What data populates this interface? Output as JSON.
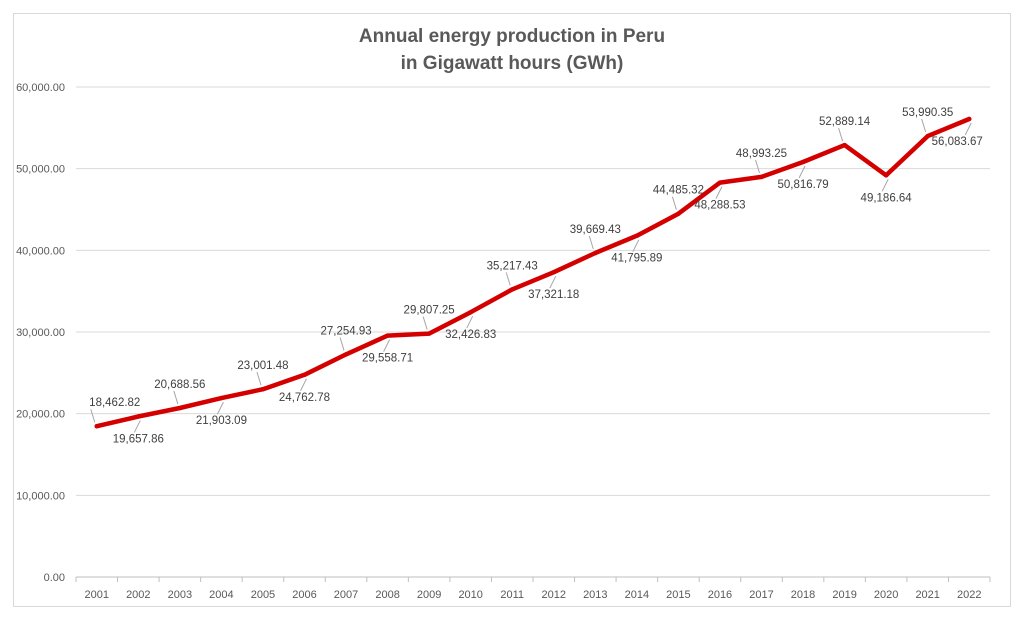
{
  "chart_data": {
    "type": "line",
    "title_line1": "Annual energy production in Peru",
    "title_line2": "in Gigawatt hours (GWh)",
    "xlabel": "",
    "ylabel": "",
    "ylim": [
      0,
      60000
    ],
    "y_ticks": [
      "0.00",
      "10,000.00",
      "20,000.00",
      "30,000.00",
      "40,000.00",
      "50,000.00",
      "60,000.00"
    ],
    "grid": true,
    "legend": "none",
    "line_color": "#d40000",
    "categories": [
      "2001",
      "2002",
      "2003",
      "2004",
      "2005",
      "2006",
      "2007",
      "2008",
      "2009",
      "2010",
      "2011",
      "2012",
      "2013",
      "2014",
      "2015",
      "2016",
      "2017",
      "2018",
      "2019",
      "2020",
      "2021",
      "2022"
    ],
    "series": [
      {
        "values": [
          18462.82,
          19657.86,
          20688.56,
          21903.09,
          23001.48,
          24762.78,
          27254.93,
          29558.71,
          29807.25,
          32426.83,
          35217.43,
          37321.18,
          39669.43,
          41795.89,
          44485.32,
          48288.53,
          48993.25,
          50816.79,
          52889.14,
          49186.64,
          53990.35,
          56083.67
        ],
        "labels": [
          "18,462.82",
          "19,657.86",
          "20,688.56",
          "21,903.09",
          "23,001.48",
          "24,762.78",
          "27,254.93",
          "29,558.71",
          "29,807.25",
          "32,426.83",
          "35,217.43",
          "37,321.18",
          "39,669.43",
          "41,795.89",
          "44,485.32",
          "48,288.53",
          "48,993.25",
          "50,816.79",
          "52,889.14",
          "49,186.64",
          "53,990.35",
          "56,083.67"
        ]
      }
    ]
  }
}
